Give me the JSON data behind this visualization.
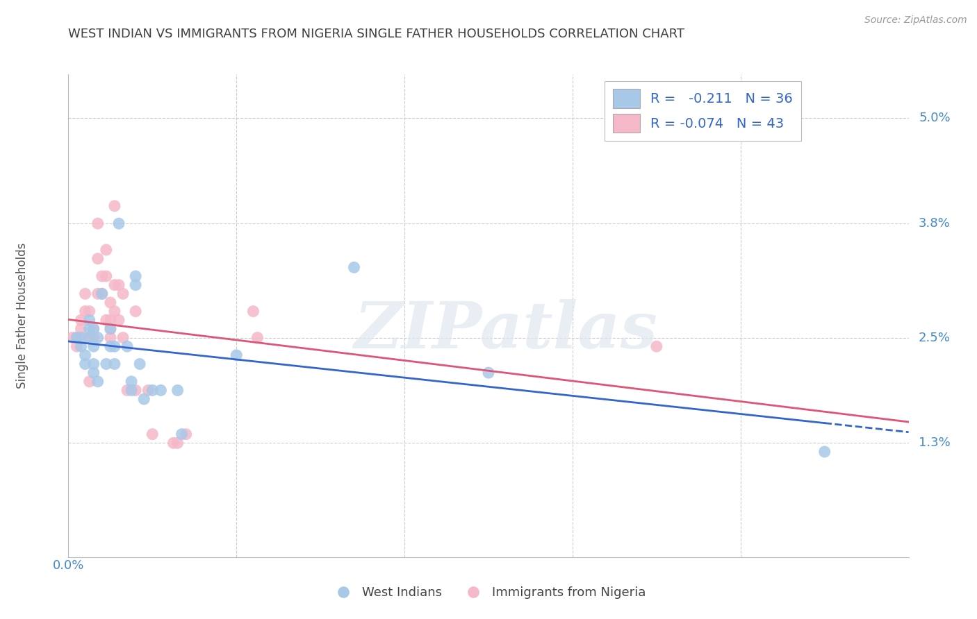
{
  "title": "WEST INDIAN VS IMMIGRANTS FROM NIGERIA SINGLE FATHER HOUSEHOLDS CORRELATION CHART",
  "source": "Source: ZipAtlas.com",
  "ylabel": "Single Father Households",
  "ytick_labels": [
    "5.0%",
    "3.8%",
    "2.5%",
    "1.3%"
  ],
  "ytick_values": [
    0.05,
    0.038,
    0.025,
    0.013
  ],
  "xtick_values": [
    0.0,
    0.04,
    0.08,
    0.12,
    0.16,
    0.2
  ],
  "xlim": [
    0.0,
    0.2
  ],
  "ylim": [
    0.0,
    0.055
  ],
  "watermark": "ZIPatlas",
  "legend_blue_label": "West Indians",
  "legend_pink_label": "Immigrants from Nigeria",
  "R_blue": "-0.211",
  "N_blue": "36",
  "R_pink": "-0.074",
  "N_pink": "43",
  "blue_color": "#a8c8e8",
  "pink_color": "#f5b8c8",
  "blue_line_color": "#3366cc",
  "pink_line_color": "#dd5577",
  "background_color": "#ffffff",
  "grid_color": "#cccccc",
  "title_color": "#404040",
  "source_color": "#999999",
  "axis_label_color": "#4488cc",
  "legend_text_dark": "#333333",
  "legend_text_blue": "#3366cc",
  "blue_points": [
    [
      0.002,
      0.025
    ],
    [
      0.003,
      0.025
    ],
    [
      0.003,
      0.024
    ],
    [
      0.004,
      0.023
    ],
    [
      0.004,
      0.022
    ],
    [
      0.005,
      0.027
    ],
    [
      0.005,
      0.026
    ],
    [
      0.005,
      0.025
    ],
    [
      0.006,
      0.026
    ],
    [
      0.006,
      0.024
    ],
    [
      0.006,
      0.022
    ],
    [
      0.006,
      0.021
    ],
    [
      0.007,
      0.025
    ],
    [
      0.007,
      0.02
    ],
    [
      0.008,
      0.03
    ],
    [
      0.009,
      0.022
    ],
    [
      0.01,
      0.026
    ],
    [
      0.01,
      0.024
    ],
    [
      0.011,
      0.024
    ],
    [
      0.011,
      0.022
    ],
    [
      0.012,
      0.038
    ],
    [
      0.014,
      0.024
    ],
    [
      0.015,
      0.02
    ],
    [
      0.015,
      0.019
    ],
    [
      0.016,
      0.032
    ],
    [
      0.016,
      0.031
    ],
    [
      0.017,
      0.022
    ],
    [
      0.018,
      0.018
    ],
    [
      0.02,
      0.019
    ],
    [
      0.022,
      0.019
    ],
    [
      0.026,
      0.019
    ],
    [
      0.027,
      0.014
    ],
    [
      0.04,
      0.023
    ],
    [
      0.068,
      0.033
    ],
    [
      0.1,
      0.021
    ],
    [
      0.18,
      0.012
    ]
  ],
  "pink_points": [
    [
      0.001,
      0.025
    ],
    [
      0.002,
      0.025
    ],
    [
      0.002,
      0.024
    ],
    [
      0.003,
      0.027
    ],
    [
      0.003,
      0.026
    ],
    [
      0.003,
      0.025
    ],
    [
      0.004,
      0.03
    ],
    [
      0.004,
      0.028
    ],
    [
      0.005,
      0.028
    ],
    [
      0.005,
      0.025
    ],
    [
      0.005,
      0.02
    ],
    [
      0.006,
      0.026
    ],
    [
      0.006,
      0.025
    ],
    [
      0.007,
      0.038
    ],
    [
      0.007,
      0.034
    ],
    [
      0.007,
      0.03
    ],
    [
      0.008,
      0.032
    ],
    [
      0.008,
      0.03
    ],
    [
      0.009,
      0.035
    ],
    [
      0.009,
      0.032
    ],
    [
      0.009,
      0.027
    ],
    [
      0.01,
      0.029
    ],
    [
      0.01,
      0.027
    ],
    [
      0.01,
      0.026
    ],
    [
      0.01,
      0.025
    ],
    [
      0.011,
      0.04
    ],
    [
      0.011,
      0.031
    ],
    [
      0.011,
      0.028
    ],
    [
      0.012,
      0.031
    ],
    [
      0.012,
      0.027
    ],
    [
      0.013,
      0.03
    ],
    [
      0.013,
      0.025
    ],
    [
      0.014,
      0.019
    ],
    [
      0.016,
      0.028
    ],
    [
      0.016,
      0.019
    ],
    [
      0.019,
      0.019
    ],
    [
      0.02,
      0.014
    ],
    [
      0.025,
      0.013
    ],
    [
      0.026,
      0.013
    ],
    [
      0.028,
      0.014
    ],
    [
      0.044,
      0.028
    ],
    [
      0.045,
      0.025
    ],
    [
      0.14,
      0.024
    ]
  ]
}
